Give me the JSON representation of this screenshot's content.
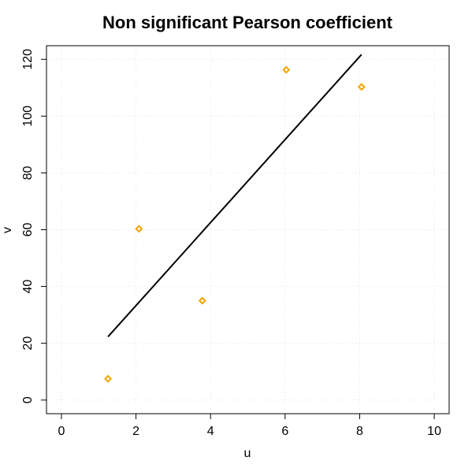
{
  "chart_data": {
    "type": "scatter",
    "title": "Non significant Pearson coefficient",
    "xlabel": "u",
    "ylabel": "v",
    "xlim": [
      -0.4,
      10.4
    ],
    "ylim": [
      -4.8,
      124.8
    ],
    "x_ticks": [
      0,
      2,
      4,
      6,
      8,
      10
    ],
    "y_ticks": [
      0,
      20,
      40,
      60,
      80,
      100,
      120
    ],
    "grid": true,
    "point_color": "#F0A500",
    "line_color": "#000000",
    "series": [
      {
        "type": "scatter",
        "marker": "diamond",
        "points": [
          {
            "x": 1.25,
            "y": 7.5
          },
          {
            "x": 2.08,
            "y": 60.3
          },
          {
            "x": 3.78,
            "y": 35.0
          },
          {
            "x": 6.03,
            "y": 116.3
          },
          {
            "x": 8.05,
            "y": 110.3
          }
        ]
      },
      {
        "type": "line",
        "points": [
          {
            "x": 1.25,
            "y": 22.3
          },
          {
            "x": 8.05,
            "y": 121.7
          }
        ]
      }
    ]
  }
}
